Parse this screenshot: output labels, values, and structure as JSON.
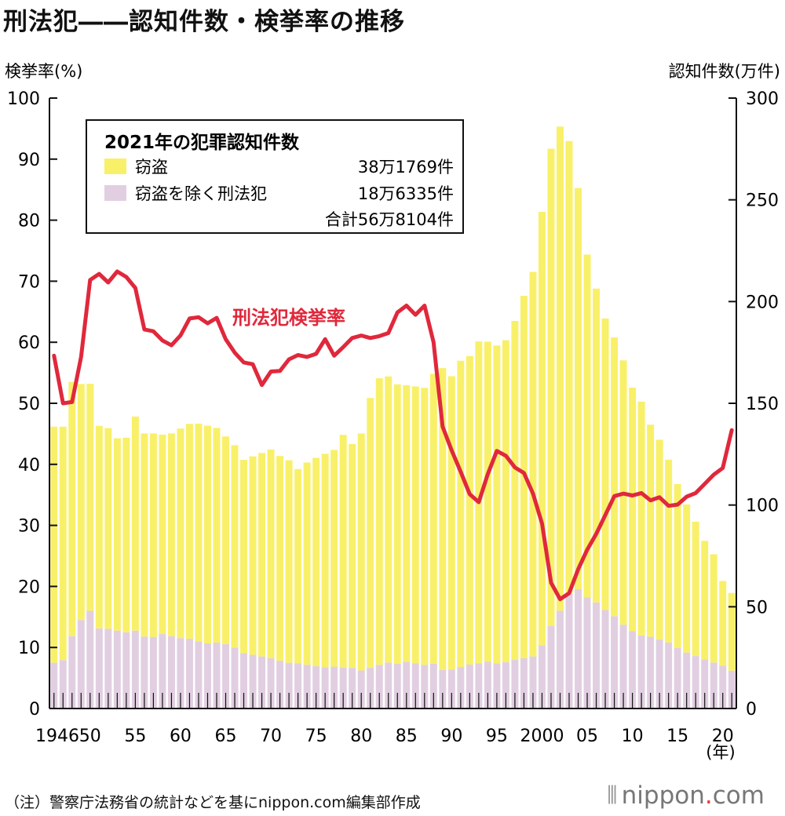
{
  "title": "刑法犯――認知件数・検挙率の推移",
  "note": "（注）警察庁法務省の統計などを基にnippon.com編集部作成",
  "brand": {
    "prefix": "nippon",
    "dot": ".",
    "suffix": "com"
  },
  "colors": {
    "theft": "#f9f06a",
    "other": "#e1cfe1",
    "rate": "#e0283c",
    "axis": "#111111"
  },
  "legend": {
    "title": "2021年の犯罪認知件数",
    "items": [
      {
        "label": "窃盗",
        "value": "38万1769件",
        "color": "#f9f06a"
      },
      {
        "label": "窃盗を除く刑法犯",
        "value": "18万6335件",
        "color": "#e1cfe1"
      }
    ],
    "total": "合計56万8104件"
  },
  "chart_data": {
    "type": "bar+line",
    "x_label": "(年)",
    "y_left_label": "検挙率(%)",
    "y_right_label": "認知件数(万件)",
    "y_left_range": [
      0,
      100
    ],
    "y_right_range": [
      0,
      300
    ],
    "y_left_ticks": [
      "0",
      "10",
      "20",
      "30",
      "40",
      "50",
      "60",
      "70",
      "80",
      "90",
      "100"
    ],
    "y_right_ticks": [
      "0",
      "50",
      "100",
      "150",
      "200",
      "250",
      "300"
    ],
    "x_tick_labels": [
      {
        "year": 1946,
        "label": "1946"
      },
      {
        "year": 1950,
        "label": "50"
      },
      {
        "year": 1955,
        "label": "55"
      },
      {
        "year": 1960,
        "label": "60"
      },
      {
        "year": 1965,
        "label": "65"
      },
      {
        "year": 1970,
        "label": "70"
      },
      {
        "year": 1975,
        "label": "75"
      },
      {
        "year": 1980,
        "label": "80"
      },
      {
        "year": 1985,
        "label": "85"
      },
      {
        "year": 1990,
        "label": "90"
      },
      {
        "year": 1995,
        "label": "95"
      },
      {
        "year": 2000,
        "label": "2000"
      },
      {
        "year": 2005,
        "label": "05"
      },
      {
        "year": 2010,
        "label": "10"
      },
      {
        "year": 2015,
        "label": "15"
      },
      {
        "year": 2020,
        "label": "20"
      }
    ],
    "years": [
      1946,
      1947,
      1948,
      1949,
      1950,
      1951,
      1952,
      1953,
      1954,
      1955,
      1956,
      1957,
      1958,
      1959,
      1960,
      1961,
      1962,
      1963,
      1964,
      1965,
      1966,
      1967,
      1968,
      1969,
      1970,
      1971,
      1972,
      1973,
      1974,
      1975,
      1976,
      1977,
      1978,
      1979,
      1980,
      1981,
      1982,
      1983,
      1984,
      1985,
      1986,
      1987,
      1988,
      1989,
      1990,
      1991,
      1992,
      1993,
      1994,
      1995,
      1996,
      1997,
      1998,
      1999,
      2000,
      2001,
      2002,
      2003,
      2004,
      2005,
      2006,
      2007,
      2008,
      2009,
      2010,
      2011,
      2012,
      2013,
      2014,
      2015,
      2016,
      2017,
      2018,
      2019,
      2020,
      2021
    ],
    "series": [
      {
        "name": "窃盗を除く刑法犯",
        "unit": "万件",
        "values": [
          22.5,
          23.8,
          35.6,
          43.5,
          48,
          39.4,
          39.2,
          38.3,
          37.5,
          38.3,
          35.4,
          35.2,
          36.6,
          35.6,
          34.6,
          34.3,
          33,
          32,
          32.4,
          31.7,
          30,
          27.2,
          26.4,
          25.6,
          24.7,
          23.5,
          22.5,
          22.3,
          21.5,
          20.8,
          20.3,
          20.6,
          20.2,
          20,
          18.7,
          20,
          21.5,
          22.6,
          22,
          22.9,
          22.3,
          21.5,
          22,
          18.9,
          19.2,
          20.4,
          21.6,
          22.2,
          23,
          22.2,
          22.8,
          23.9,
          24.7,
          25.6,
          31,
          40.6,
          48,
          56.6,
          58.6,
          54.7,
          52.1,
          48.4,
          45.4,
          41.2,
          38,
          35.9,
          35.3,
          33.9,
          32.4,
          29.8,
          27.5,
          25.8,
          24.2,
          22.6,
          21,
          18.6
        ]
      },
      {
        "name": "窃盗",
        "unit": "万件",
        "values": [
          116,
          114.7,
          124.9,
          116,
          111.6,
          99.5,
          98.6,
          94.5,
          95.6,
          105.2,
          99.8,
          100,
          98,
          99.6,
          103,
          105.6,
          107,
          107,
          105.5,
          102,
          99.4,
          95,
          97.5,
          100,
          102.6,
          100.6,
          99.5,
          95.4,
          99.4,
          102.4,
          104.9,
          106.5,
          114.3,
          110,
          116.5,
          132.6,
          140.8,
          140.6,
          137.3,
          136,
          136,
          136.1,
          142.5,
          148.4,
          144.1,
          150.5,
          151.6,
          158.2,
          157.3,
          156.2,
          158.2,
          166.6,
          178.1,
          189,
          213.1,
          234.5,
          238,
          222.3,
          197.2,
          168.4,
          154.3,
          143.3,
          137,
          129.9,
          119.7,
          114.9,
          104.2,
          98.2,
          89.9,
          80.5,
          72.8,
          66,
          58.2,
          53.2,
          41.7,
          38.2
        ]
      },
      {
        "name": "刑法犯検挙率",
        "unit": "%",
        "values": [
          57.8,
          50,
          50.2,
          57.6,
          70.2,
          71.2,
          69.8,
          71.6,
          70.7,
          68.9,
          62.1,
          61.8,
          60.3,
          59.5,
          61.1,
          63.9,
          64.1,
          63.1,
          64,
          60.5,
          58.3,
          56.7,
          56.4,
          53,
          55.2,
          55.3,
          57.2,
          57.9,
          57.6,
          58.1,
          60.5,
          57.8,
          59.2,
          60.7,
          61.1,
          60.7,
          61,
          61.5,
          64.9,
          66,
          64.5,
          66,
          60,
          46.2,
          42.3,
          38.8,
          35.1,
          33.8,
          38.4,
          42.2,
          41.4,
          39.5,
          38.6,
          35.2,
          30.3,
          20.6,
          17.9,
          18.9,
          22.8,
          26,
          28.6,
          31.7,
          34.8,
          35.2,
          34.9,
          35.3,
          34.1,
          34.6,
          33.2,
          33.4,
          34.7,
          35.3,
          36.8,
          38.3,
          39.4,
          45.6
        ]
      }
    ]
  }
}
